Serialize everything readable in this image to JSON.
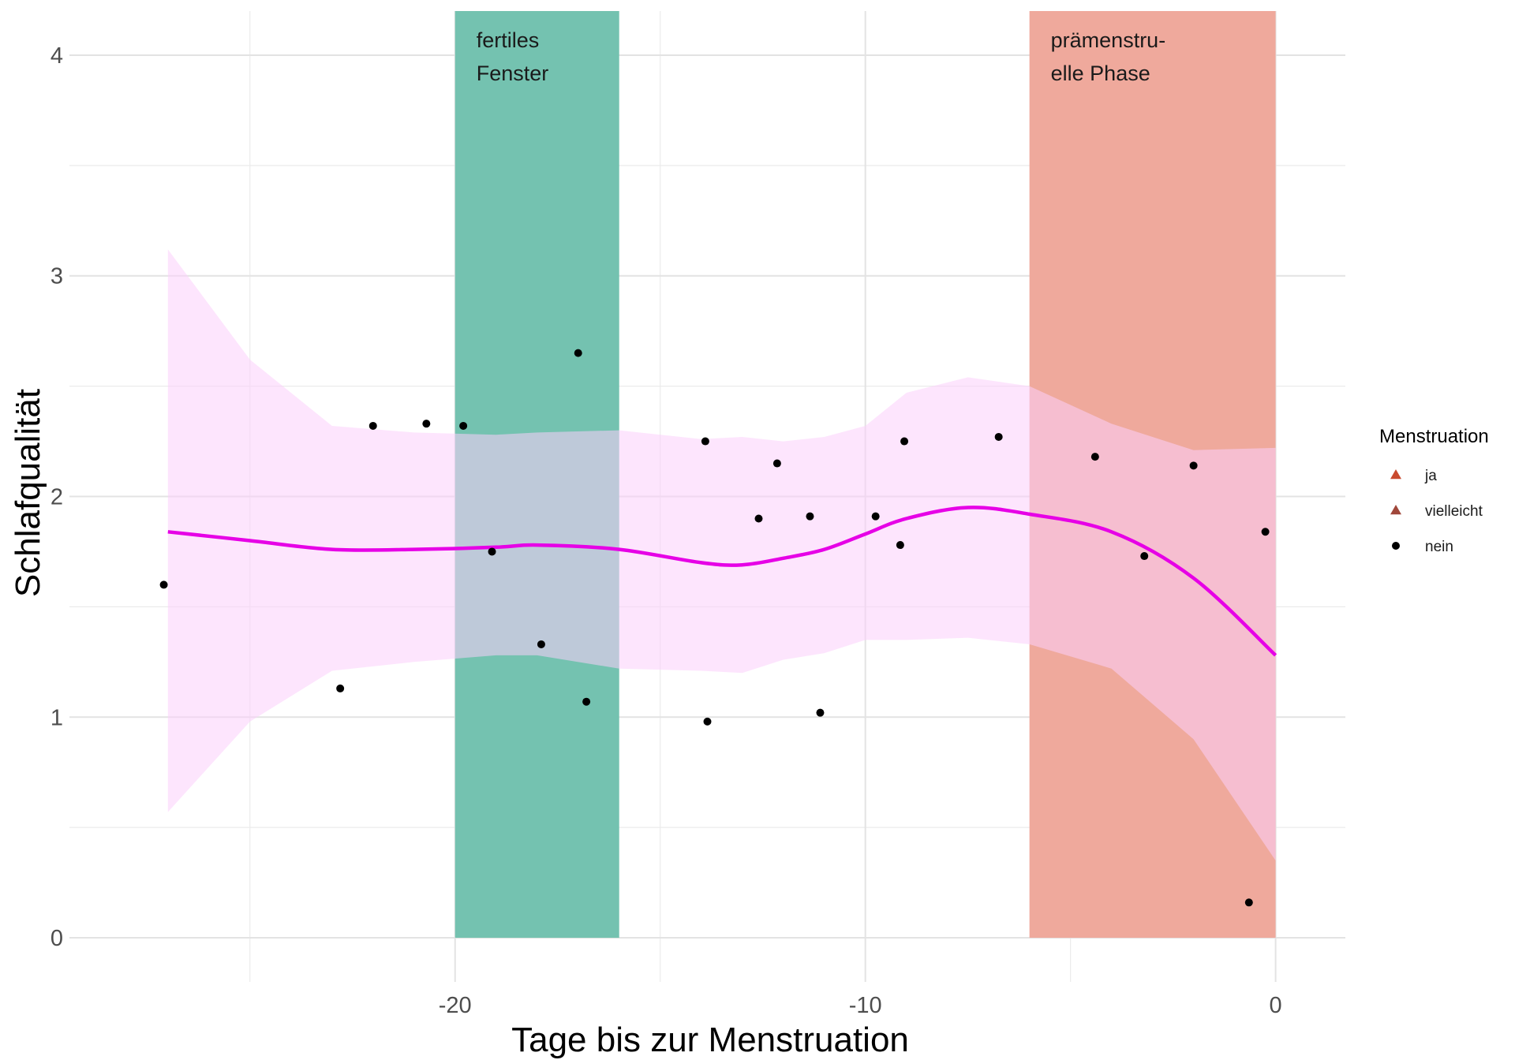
{
  "chart_data": {
    "type": "scatter",
    "xlabel": "Tage bis zur Menstruation",
    "ylabel": "Schlafqualität",
    "xlim": [
      -29.4,
      1.7
    ],
    "ylim": [
      -0.2,
      4.2
    ],
    "x_ticks": [
      -20,
      -10,
      0
    ],
    "y_ticks": [
      0,
      1,
      2,
      3,
      4
    ],
    "grid": true,
    "bands": [
      {
        "name": "fertiles Fenster",
        "label_lines": [
          "fertiles",
          "Fenster"
        ],
        "x_start": -20,
        "x_end": -16,
        "color": "#74c2b0"
      },
      {
        "name": "prämenstruelle Phase",
        "label_lines": [
          "prämenstru-",
          "elle Phase"
        ],
        "x_start": -6,
        "x_end": 0,
        "color": "#efa99c"
      }
    ],
    "points": [
      {
        "x": -27.1,
        "y": 1.6
      },
      {
        "x": -22.8,
        "y": 1.13
      },
      {
        "x": -22.0,
        "y": 2.32
      },
      {
        "x": -20.7,
        "y": 2.33
      },
      {
        "x": -19.8,
        "y": 2.32
      },
      {
        "x": -19.1,
        "y": 1.75
      },
      {
        "x": -17.9,
        "y": 1.33
      },
      {
        "x": -17.0,
        "y": 2.65
      },
      {
        "x": -16.8,
        "y": 1.07
      },
      {
        "x": -13.9,
        "y": 2.25
      },
      {
        "x": -13.85,
        "y": 0.98
      },
      {
        "x": -12.6,
        "y": 1.9
      },
      {
        "x": -12.15,
        "y": 2.15
      },
      {
        "x": -11.35,
        "y": 1.91
      },
      {
        "x": -11.1,
        "y": 1.02
      },
      {
        "x": -9.75,
        "y": 1.91
      },
      {
        "x": -9.15,
        "y": 1.78
      },
      {
        "x": -9.05,
        "y": 2.25
      },
      {
        "x": -6.75,
        "y": 2.27
      },
      {
        "x": -4.4,
        "y": 2.18
      },
      {
        "x": -3.2,
        "y": 1.73
      },
      {
        "x": -2.0,
        "y": 2.14
      },
      {
        "x": -0.65,
        "y": 0.16
      },
      {
        "x": -0.25,
        "y": 1.84
      }
    ],
    "smooth": {
      "color": "#e600e6",
      "ribbon_color": "#fbd0fb",
      "x": [
        -27.0,
        -25,
        -23,
        -21,
        -19,
        -18,
        -16,
        -14,
        -13,
        -12,
        -11,
        -10,
        -9,
        -7.5,
        -6,
        -4,
        -2,
        0
      ],
      "y": [
        1.84,
        1.8,
        1.76,
        1.76,
        1.77,
        1.78,
        1.76,
        1.7,
        1.69,
        1.72,
        1.76,
        1.83,
        1.9,
        1.95,
        1.92,
        1.84,
        1.63,
        1.28
      ],
      "lower": [
        0.57,
        0.98,
        1.21,
        1.25,
        1.28,
        1.28,
        1.22,
        1.21,
        1.2,
        1.26,
        1.29,
        1.35,
        1.35,
        1.36,
        1.33,
        1.22,
        0.9,
        0.35
      ],
      "upper": [
        3.12,
        2.62,
        2.32,
        2.29,
        2.28,
        2.29,
        2.3,
        2.26,
        2.27,
        2.25,
        2.27,
        2.32,
        2.47,
        2.54,
        2.5,
        2.33,
        2.21,
        2.22
      ]
    },
    "legend": {
      "title": "Menstruation",
      "position": "right",
      "items": [
        {
          "label": "ja",
          "shape": "triangle",
          "color": "#c94a2e"
        },
        {
          "label": "vielleicht",
          "shape": "triangle",
          "color": "#a0473a"
        },
        {
          "label": "nein",
          "shape": "circle",
          "color": "#000000"
        }
      ]
    }
  }
}
